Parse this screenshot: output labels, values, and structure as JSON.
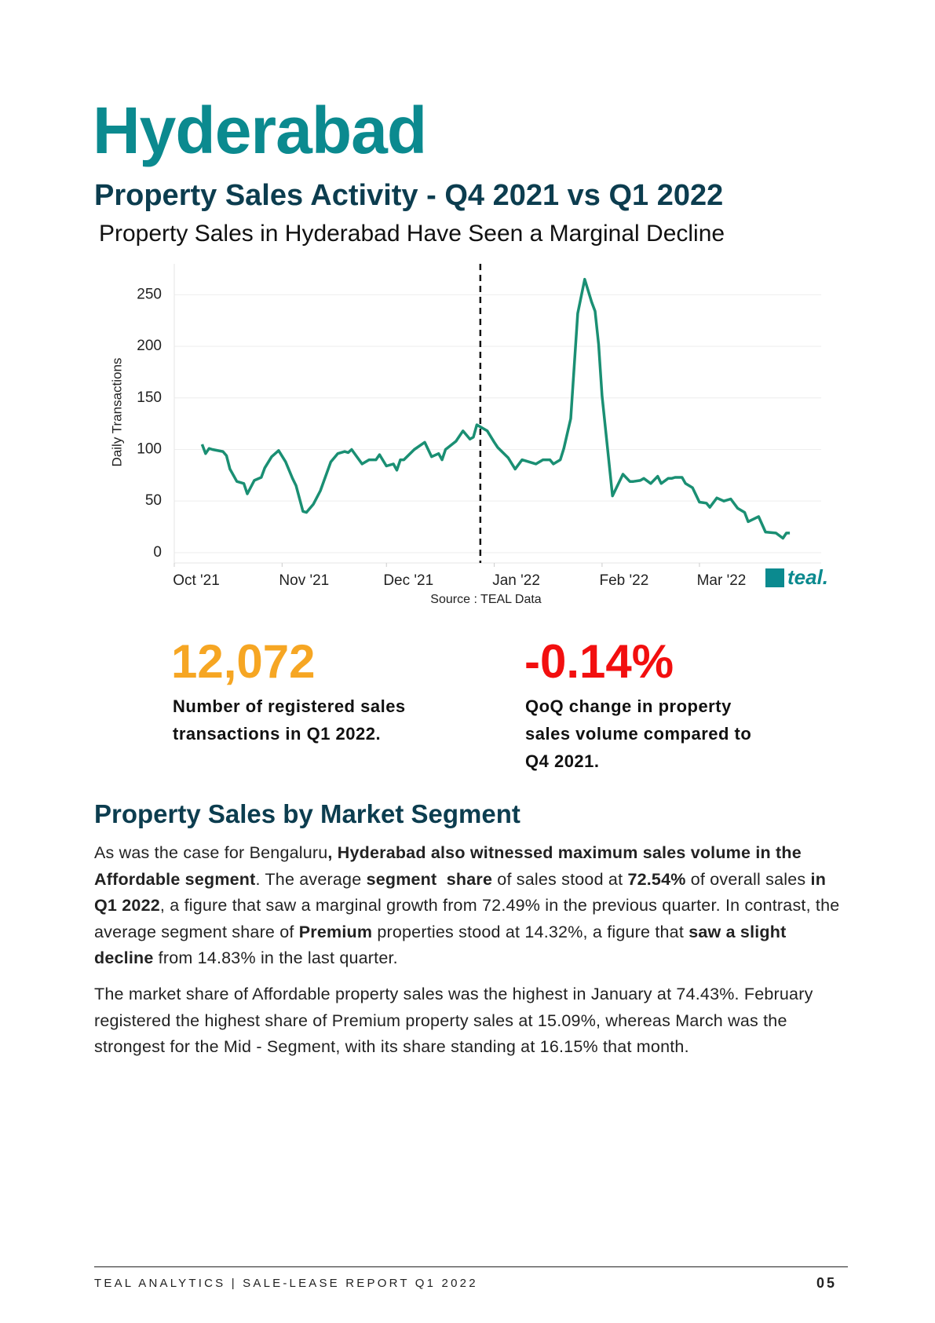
{
  "header": {
    "title": "Hyderabad",
    "subtitle": "Property Sales Activity - Q4 2021 vs Q1 2022"
  },
  "chart_data": {
    "type": "line",
    "title": "Property Sales in Hyderabad Have Seen a Marginal Decline",
    "y_label": "Daily Transactions",
    "source": "Source : TEAL Data",
    "logo": "teal.",
    "color": "#1a8f73",
    "grid": true,
    "x": [
      8,
      9,
      10,
      11,
      14,
      15,
      16,
      18,
      20,
      21,
      23,
      25,
      26,
      28,
      30,
      32,
      34,
      35,
      37,
      38,
      40,
      42,
      45,
      47,
      49,
      50,
      51,
      54,
      56,
      58,
      59,
      61,
      63,
      64,
      65,
      66,
      69,
      72,
      74,
      76,
      77,
      78,
      81,
      83,
      85,
      86,
      87,
      88,
      90,
      92,
      93,
      96,
      98,
      100,
      104,
      106,
      108,
      109,
      111,
      112,
      114,
      116,
      118,
      120,
      121,
      122,
      123,
      126,
      129,
      131,
      132,
      134,
      135,
      137,
      139,
      140,
      142,
      143,
      144,
      146,
      147,
      149,
      151,
      153,
      154,
      156,
      158,
      160,
      162,
      164,
      165,
      168,
      170,
      173,
      175,
      176,
      177
    ],
    "values": [
      105,
      96,
      101,
      100,
      98,
      94,
      81,
      69,
      67,
      57,
      70,
      73,
      82,
      93,
      99,
      88,
      72,
      65,
      40,
      39,
      47,
      60,
      88,
      96,
      98,
      97,
      100,
      86,
      90,
      90,
      95,
      84,
      86,
      80,
      90,
      90,
      100,
      107,
      93,
      96,
      90,
      100,
      108,
      118,
      110,
      112,
      124,
      122,
      118,
      107,
      102,
      92,
      81,
      90,
      86,
      90,
      90,
      86,
      90,
      101,
      130,
      232,
      265,
      243,
      234,
      202,
      152,
      55,
      76,
      69,
      69,
      70,
      72,
      67,
      74,
      67,
      72,
      72,
      73,
      73,
      67,
      63,
      49,
      48,
      44,
      53,
      50,
      52,
      43,
      39,
      30,
      35,
      20,
      19,
      14,
      19,
      19
    ],
    "xlim": [
      0,
      186
    ],
    "xticks": [
      {
        "value": 0,
        "label": "Oct '21"
      },
      {
        "value": 31,
        "label": "Nov '21"
      },
      {
        "value": 61,
        "label": "Dec '21"
      },
      {
        "value": 92,
        "label": "Jan '22"
      },
      {
        "value": 123,
        "label": "Feb '22"
      },
      {
        "value": 151,
        "label": "Mar '22"
      }
    ],
    "ylim": [
      -10,
      280
    ],
    "yticks": [
      0,
      50,
      100,
      150,
      200,
      250
    ],
    "divider_x": 88
  },
  "stats": [
    {
      "value": "12,072",
      "text": "Number of registered sales transactions in Q1 2022."
    },
    {
      "value": "-0.14%",
      "text": "QoQ change in property sales volume compared to Q4 2021."
    }
  ],
  "section": {
    "title": "Property Sales by Market Segment",
    "paragraphs": [
      [
        {
          "t": "As was the case for Bengaluru",
          "b": false
        },
        {
          "t": ", Hyderabad also witnessed maximum sales volume in the Affordable segment",
          "b": true
        },
        {
          "t": ". The average ",
          "b": false
        },
        {
          "t": "segment  share",
          "b": true
        },
        {
          "t": " of sales stood at ",
          "b": false
        },
        {
          "t": "72.54%",
          "b": true
        },
        {
          "t": " of overall sales ",
          "b": false
        },
        {
          "t": "in Q1 2022",
          "b": true
        },
        {
          "t": ", a figure that saw a marginal growth from 72.49% in the previous quarter. In contrast, the average segment share of ",
          "b": false
        },
        {
          "t": "Premium",
          "b": true
        },
        {
          "t": " properties stood at 14.32%, a figure that ",
          "b": false
        },
        {
          "t": "saw a slight decline",
          "b": true
        },
        {
          "t": " from 14.83% in the last quarter.",
          "b": false
        }
      ],
      [
        {
          "t": "The market share of Affordable property sales was the highest in January at 74.43%. February registered the highest share of Premium property sales at 15.09%, whereas March was the strongest for the Mid - Segment, with its share standing at 16.15% that month.",
          "b": false
        }
      ]
    ]
  },
  "footer": {
    "text": "TEAL ANALYTICS | SALE-LEASE REPORT Q1 2022",
    "page": "05"
  }
}
